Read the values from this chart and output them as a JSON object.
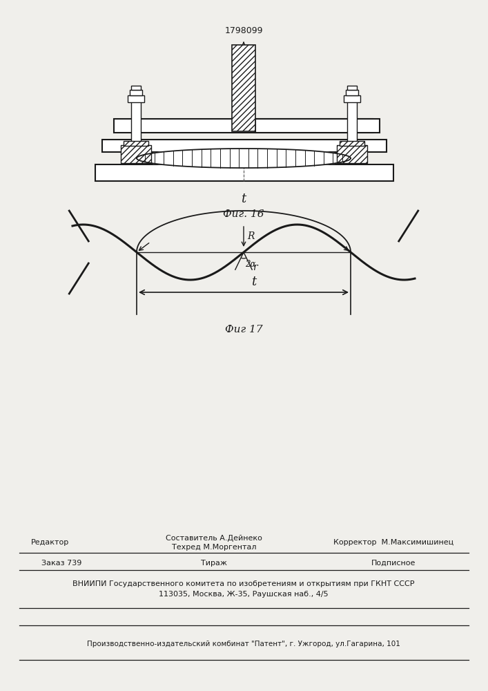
{
  "patent_number": "1798099",
  "fig16_label": "Фиг. 16",
  "fig17_label": "Фиг 17",
  "fig16_t_label": "t",
  "fig16_R_label": "R",
  "fig16_2alpha_label": "2α",
  "fig16_r_label": "r",
  "fig17_t_label": "t",
  "footer_line1_left": "Редактор",
  "footer_line1_center1": "Составитель А.Дейнеко",
  "footer_line1_center2": "Техред М.Моргентал",
  "footer_line1_right": "Корректор  М.Максимишинец",
  "footer_line2_left": "Заказ 739",
  "footer_line2_center": "Тираж",
  "footer_line2_right": "Подписное",
  "footer_line3": "ВНИИПИ Государственного комитета по изобретениям и открытиям при ГКНТ СССР",
  "footer_line4": "113035, Москва, Ж-35, Раушская наб., 4/5",
  "footer_line5": "Производственно-издательский комбинат \"Патент\", г. Ужгород, ул.Гагарина, 101",
  "bg_color": "#f0efeb",
  "line_color": "#1a1a1a"
}
